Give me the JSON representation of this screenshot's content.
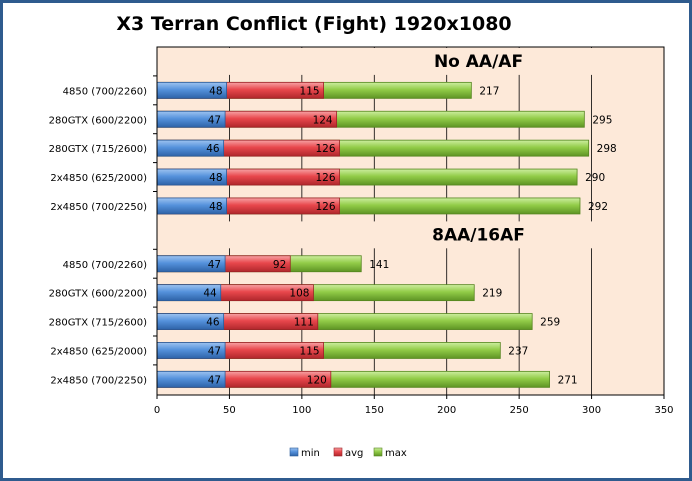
{
  "chart_data": {
    "type": "bar",
    "orientation": "horizontal",
    "stacked": "overlay",
    "title": "X3 Terran Conflict  (Fight) 1920x1080",
    "xlim": [
      0,
      350
    ],
    "x_ticks": [
      "0",
      "50",
      "100",
      "150",
      "200",
      "250",
      "300",
      "350"
    ],
    "grid": "vertical",
    "legend_position": "bottom",
    "groups": [
      {
        "label": "No AA/AF",
        "categories": [
          "4850 (700/2260)",
          "280GTX (600/2200)",
          "280GTX (715/2600)",
          "2x4850 (625/2000)",
          "2x4850 (700/2250)"
        ],
        "series": [
          {
            "name": "min",
            "values": [
              48,
              47,
              46,
              48,
              48
            ]
          },
          {
            "name": "avg",
            "values": [
              115,
              124,
              126,
              126,
              126
            ]
          },
          {
            "name": "max",
            "values": [
              217,
              295,
              298,
              290,
              292
            ]
          }
        ]
      },
      {
        "label": "8AA/16AF",
        "categories": [
          "4850 (700/2260)",
          "280GTX (600/2200)",
          "280GTX (715/2600)",
          "2x4850 (625/2000)",
          "2x4850 (700/2250)"
        ],
        "series": [
          {
            "name": "min",
            "values": [
              47,
              44,
              46,
              47,
              47
            ]
          },
          {
            "name": "avg",
            "values": [
              92,
              108,
              111,
              115,
              120
            ]
          },
          {
            "name": "max",
            "values": [
              141,
              219,
              259,
              237,
              271
            ]
          }
        ]
      }
    ],
    "colors": {
      "min": "#4a86d4",
      "avg": "#e8474c",
      "max": "#8cc63f",
      "plot_background": "#fde9d9"
    }
  }
}
